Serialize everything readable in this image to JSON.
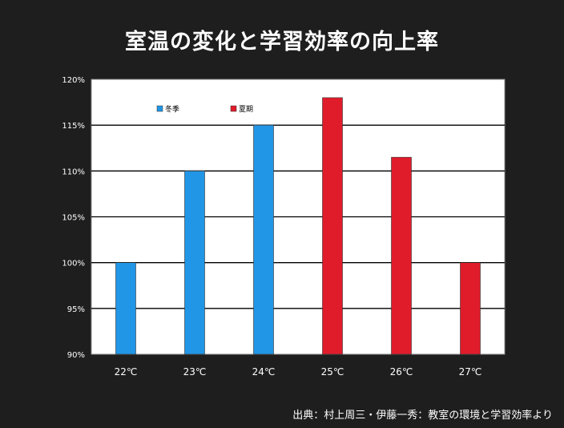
{
  "slide": {
    "title": "室温の変化と学習効率の向上率",
    "source": "出典：村上周三・伊藤一秀：教室の環境と学習効率より"
  },
  "chart_data": {
    "type": "bar",
    "title": "",
    "xlabel": "",
    "ylabel": "",
    "categories": [
      "22℃",
      "23℃",
      "24℃",
      "25℃",
      "26℃",
      "27℃"
    ],
    "y_ticks": [
      "90%",
      "95%",
      "100%",
      "105%",
      "110%",
      "115%",
      "120%"
    ],
    "ylim": [
      90,
      120
    ],
    "grid": "horizontal",
    "legend_position": "top-left",
    "series": [
      {
        "name": "冬季",
        "color": "#2196e6",
        "values": [
          100,
          110,
          115,
          null,
          null,
          null
        ]
      },
      {
        "name": "夏期",
        "color": "#e01b2a",
        "values": [
          null,
          null,
          null,
          118,
          111.5,
          100
        ]
      }
    ]
  }
}
